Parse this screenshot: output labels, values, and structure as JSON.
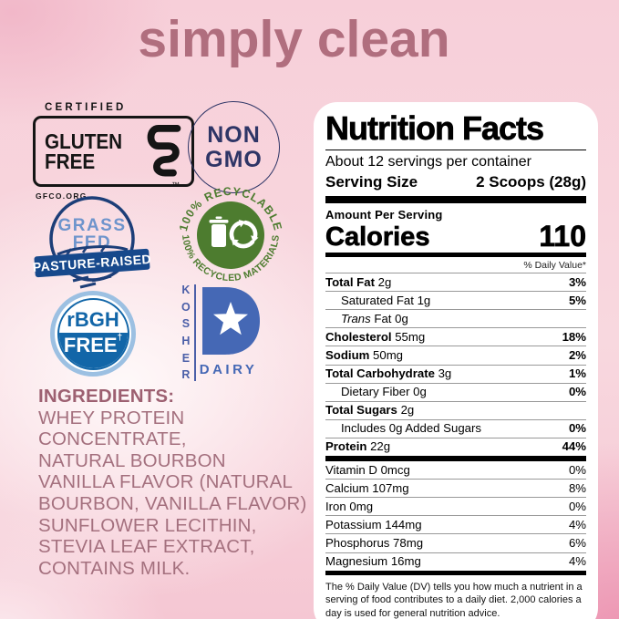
{
  "colors": {
    "title_rose": "#b06e7e",
    "ingredients_mauve": "#a4707e",
    "background_pink": "#f7cfd9",
    "background_deep_pink": "#ec93b1",
    "badge_black": "#151515",
    "non_gmo_navy": "#2e3566",
    "grass_fed_light_blue": "#6e94cc",
    "grass_fed_navy": "#17498c",
    "recycle_green": "#4d7c2f",
    "rbgh_blue": "#1266a8",
    "rbgh_ring_blue": "#9cc0e2",
    "kosher_blue": "#4568b5",
    "label_black": "#000000"
  },
  "header": {
    "title": "simply clean"
  },
  "badges": {
    "gluten_free": {
      "certified": "CERTIFIED",
      "word1": "GLUTEN",
      "word2": "FREE",
      "trademark": "™",
      "org": "GFCO.ORG"
    },
    "non_gmo": {
      "line1": "NON",
      "line2": "GMO"
    },
    "grass_fed": {
      "line1": "GRASS",
      "line2": "FED",
      "banner": "PASTURE-RAISED"
    },
    "recyclable": {
      "arc_top": "100% RECYCLABLE",
      "arc_bottom": "100% RECYCLED MATERIALS"
    },
    "rbgh_free": {
      "top": "rBGH",
      "bottom": "FREE",
      "dagger": "†"
    },
    "kosher_dairy": {
      "vertical": "KOSHER",
      "dairy": "DAIRY"
    }
  },
  "ingredients": {
    "heading": "INGREDIENTS:",
    "lines": [
      "WHEY PROTEIN",
      "CONCENTRATE,",
      "NATURAL BOURBON",
      "VANILLA FLAVOR (NATURAL",
      "BOURBON, VANILLA FLAVOR)",
      "SUNFLOWER LECITHIN,",
      "STEVIA LEAF EXTRACT,",
      "CONTAINS MILK."
    ]
  },
  "nutrition": {
    "title": "Nutrition Facts",
    "servings_per_container": "About 12 servings per container",
    "serving_size_label": "Serving Size",
    "serving_size_value": "2 Scoops (28g)",
    "amount_per_serving": "Amount Per Serving",
    "calories_label": "Calories",
    "calories_value": "110",
    "daily_value_header": "% Daily Value*",
    "rows": [
      {
        "name": "Total Fat",
        "amount": "2g",
        "dv": "3%",
        "bold": true,
        "indent": 0
      },
      {
        "name": "Saturated Fat",
        "amount": "1g",
        "dv": "5%",
        "bold": false,
        "indent": 1
      },
      {
        "italic_prefix": "Trans",
        "name": "Fat",
        "amount": "0g",
        "dv": "",
        "bold": false,
        "indent": 1
      },
      {
        "name": "Cholesterol",
        "amount": "55mg",
        "dv": "18%",
        "bold": true,
        "indent": 0
      },
      {
        "name": "Sodium",
        "amount": "50mg",
        "dv": "2%",
        "bold": true,
        "indent": 0
      },
      {
        "name": "Total Carbohydrate",
        "amount": "3g",
        "dv": "1%",
        "bold": true,
        "indent": 0
      },
      {
        "name": "Dietary Fiber",
        "amount": "0g",
        "dv": "0%",
        "bold": false,
        "indent": 1
      },
      {
        "name": "Total Sugars",
        "amount": "2g",
        "dv": "",
        "bold": true,
        "indent": 0
      },
      {
        "name": "Includes 0g Added Sugars",
        "amount": "",
        "dv": "0%",
        "bold": false,
        "indent": 1
      },
      {
        "name": "Protein",
        "amount": "22g",
        "dv": "44%",
        "bold": true,
        "indent": 0
      }
    ],
    "micros": [
      {
        "name": "Vitamin D",
        "amount": "0mcg",
        "dv": "0%"
      },
      {
        "name": "Calcium",
        "amount": "107mg",
        "dv": "8%"
      },
      {
        "name": "Iron",
        "amount": "0mg",
        "dv": "0%"
      },
      {
        "name": "Potassium",
        "amount": "144mg",
        "dv": "4%"
      },
      {
        "name": "Phosphorus",
        "amount": "78mg",
        "dv": "6%"
      },
      {
        "name": "Magnesium",
        "amount": "16mg",
        "dv": "4%"
      }
    ],
    "footnote": "The % Daily Value (DV) tells you how much a nutrient in a serving of food contributes to a daily diet. 2,000 calories a day is used for general nutrition advice."
  }
}
